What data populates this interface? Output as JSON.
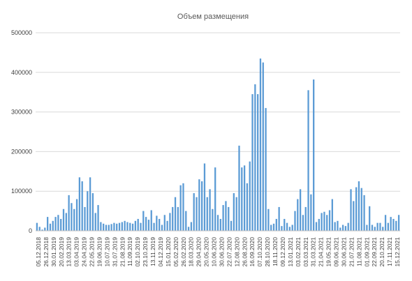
{
  "chart_data": {
    "type": "bar",
    "title": "Объем размещения",
    "xlabel": "",
    "ylabel": "",
    "ylim": [
      0,
      500000
    ],
    "yticks": [
      0,
      100000,
      200000,
      300000,
      400000,
      500000
    ],
    "ytick_labels": [
      "0",
      "100000",
      "200000",
      "300000",
      "400000",
      "500000"
    ],
    "bar_color": "#5b9bd5",
    "grid": true,
    "legend": "none",
    "xtick_labels": [
      "05.12.2018",
      "26.12.2018",
      "30.01.2019",
      "20.02.2019",
      "13.03.2019",
      "03.04.2019",
      "24.04.2019",
      "22.05.2019",
      "19.06.2019",
      "10.07.2019",
      "31.07.2019",
      "21.08.2019",
      "11.09.2019",
      "02.10.2019",
      "23.10.2019",
      "13.11.2019",
      "04.12.2019",
      "15.01.2020",
      "05.02.2020",
      "26.02.2020",
      "18.03.2020",
      "29.04.2020",
      "20.05.2020",
      "10.06.2020",
      "30.06.2020",
      "22.07.2020",
      "12.08.2020",
      "26.08.2020",
      "16.09.2020",
      "07.10.2020",
      "28.10.2020",
      "18.11.2020",
      "09.12.2020",
      "13.01.2021",
      "03.02.2021",
      "03.03.2021",
      "31.03.2021",
      "21.04.2021",
      "19.05.2021",
      "09.06.2021",
      "30.06.2021",
      "21.07.2021",
      "11.08.2021",
      "01.09.2021",
      "22.09.2021",
      "20.10.2021",
      "17.11.2021",
      "15.12.2021"
    ],
    "values": [
      20000,
      10000,
      3000,
      8000,
      35000,
      18000,
      25000,
      35000,
      40000,
      30000,
      55000,
      45000,
      90000,
      70000,
      55000,
      80000,
      135000,
      125000,
      60000,
      100000,
      135000,
      95000,
      45000,
      65000,
      22000,
      18000,
      15000,
      15000,
      17000,
      20000,
      18000,
      20000,
      22000,
      25000,
      22000,
      20000,
      18000,
      25000,
      30000,
      20000,
      50000,
      35000,
      28000,
      52000,
      20000,
      38000,
      30000,
      15000,
      40000,
      25000,
      45000,
      60000,
      85000,
      60000,
      115000,
      120000,
      50000,
      10000,
      22000,
      95000,
      85000,
      130000,
      125000,
      170000,
      85000,
      105000,
      55000,
      160000,
      40000,
      30000,
      65000,
      75000,
      60000,
      25000,
      95000,
      85000,
      215000,
      160000,
      165000,
      120000,
      175000,
      345000,
      370000,
      345000,
      435000,
      425000,
      310000,
      55000,
      15000,
      18000,
      30000,
      60000,
      12000,
      30000,
      20000,
      10000,
      15000,
      50000,
      80000,
      105000,
      40000,
      60000,
      355000,
      92000,
      382000,
      22000,
      30000,
      45000,
      48000,
      40000,
      52000,
      80000,
      22000,
      25000,
      8000,
      15000,
      12000,
      20000,
      105000,
      75000,
      110000,
      125000,
      108000,
      90000,
      15000,
      62000,
      15000,
      10000,
      20000,
      20000,
      10000,
      40000,
      20000,
      35000,
      30000,
      25000,
      40000
    ]
  }
}
